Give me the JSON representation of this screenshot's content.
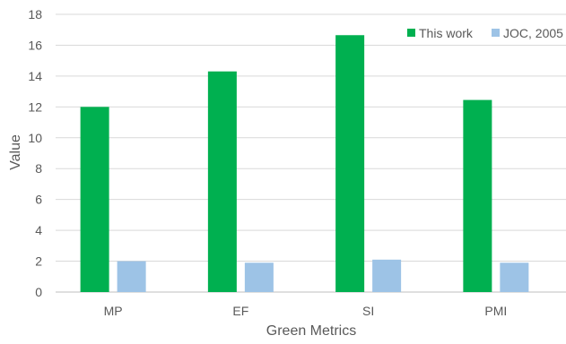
{
  "chart_data": {
    "type": "bar",
    "categories": [
      "MP",
      "EF",
      "SI",
      "PMI"
    ],
    "series": [
      {
        "name": "This work",
        "color": "#00b050",
        "values": [
          12.0,
          14.3,
          16.65,
          12.45
        ]
      },
      {
        "name": "JOC, 2005",
        "color": "#9dc3e6",
        "values": [
          2.0,
          1.9,
          2.1,
          1.9
        ]
      }
    ],
    "title": "",
    "xlabel": "Green Metrics",
    "ylabel": "Value",
    "ylim": [
      0,
      18
    ],
    "yticks": [
      0,
      2,
      4,
      6,
      8,
      10,
      12,
      14,
      16,
      18
    ],
    "grid": true,
    "legend_position": "top-right"
  }
}
